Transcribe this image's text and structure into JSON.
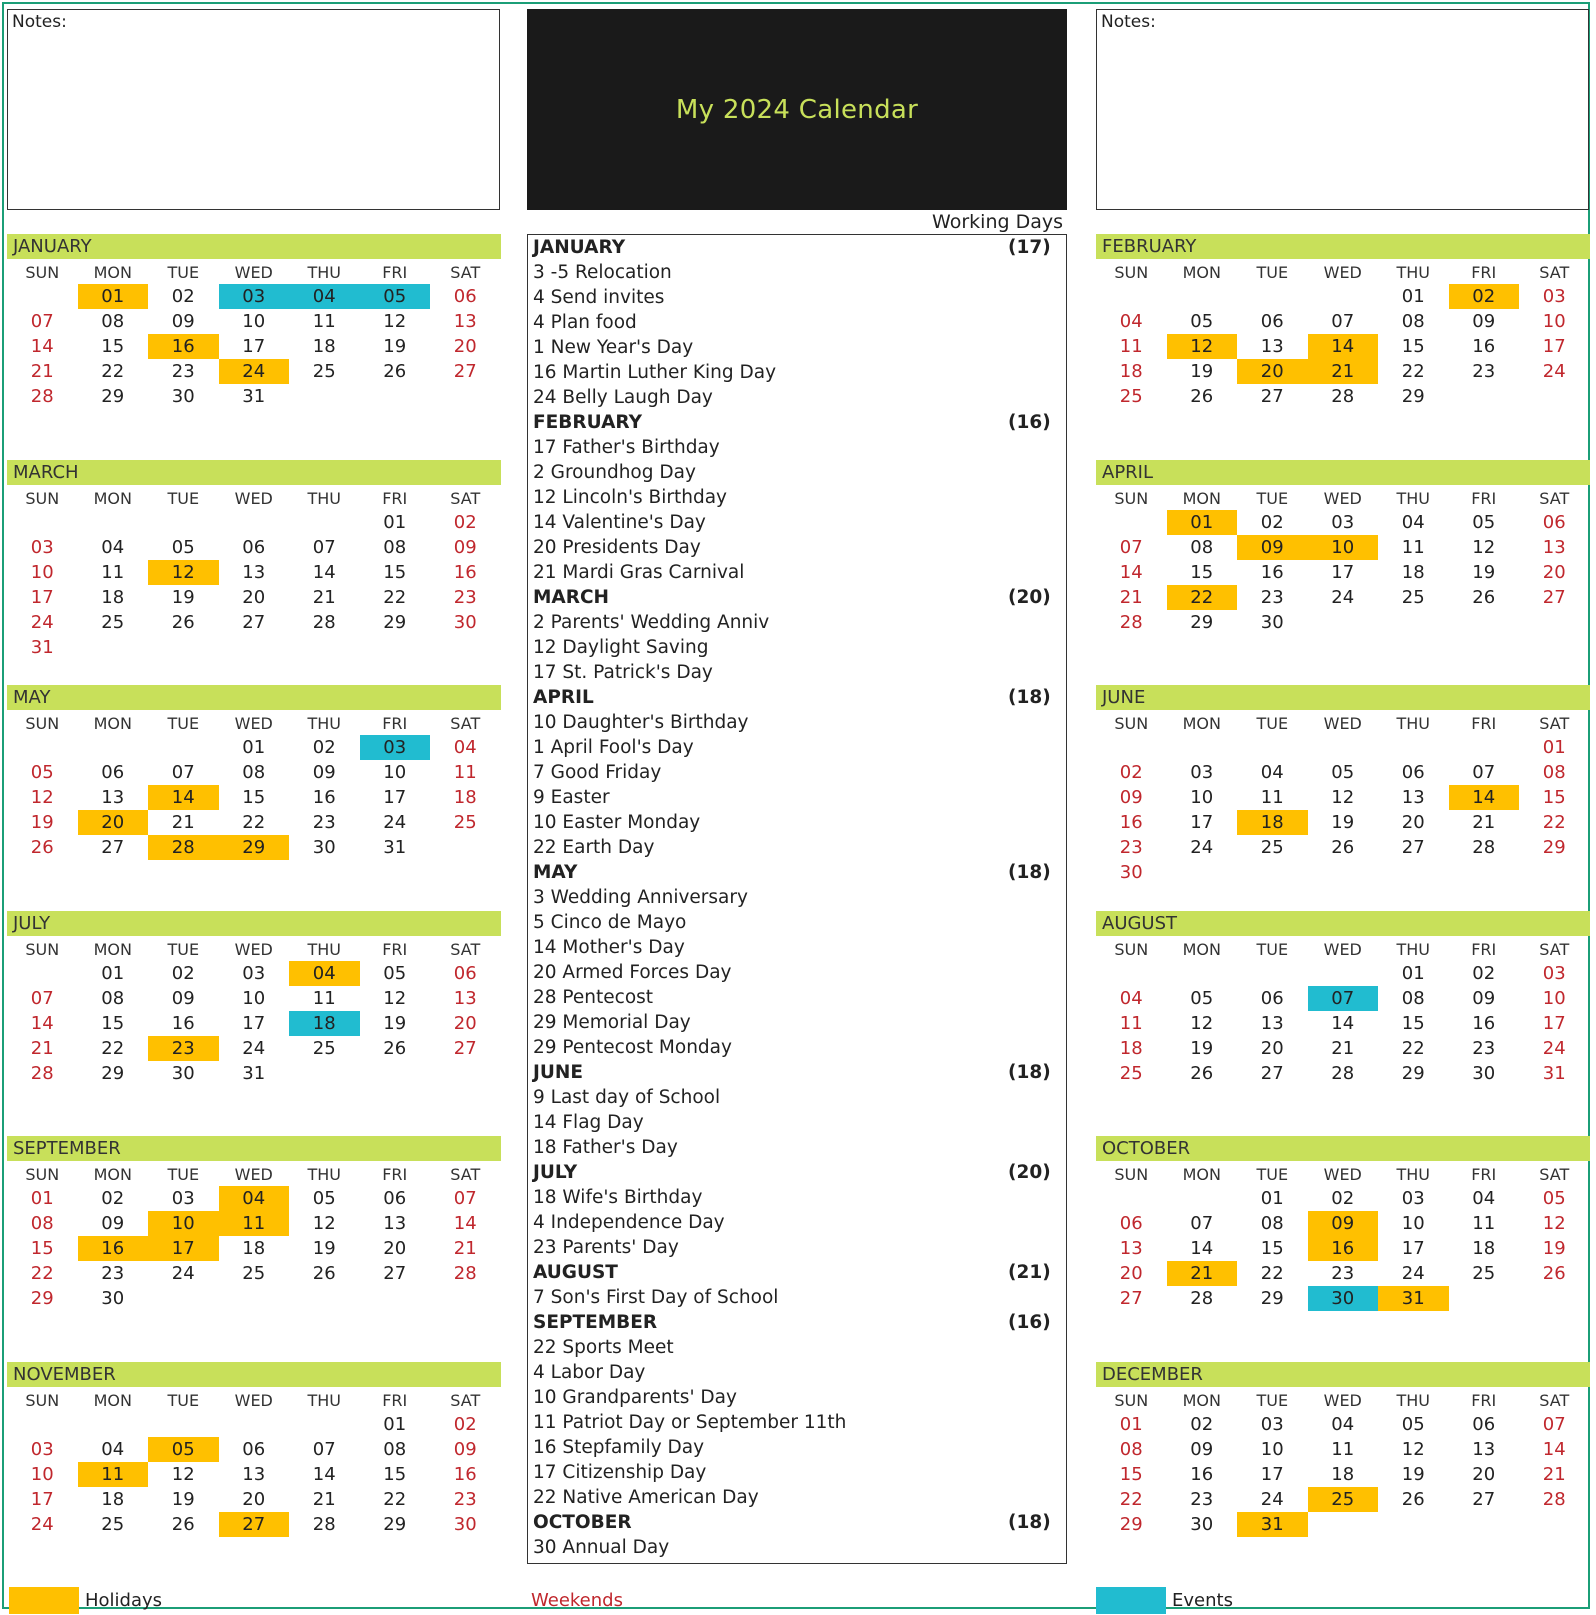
{
  "title": "My 2024 Calendar",
  "notes_label": "Notes:",
  "working_days_label": "Working Days",
  "weekdays": [
    "SUN",
    "MON",
    "TUE",
    "WED",
    "THU",
    "FRI",
    "SAT"
  ],
  "colors": {
    "accent": "#c8e05a",
    "holiday": "#ffc000",
    "event": "#21bcd0",
    "weekend": "#c0272d"
  },
  "months": [
    {
      "name": "JANUARY",
      "start": 1,
      "days": 31,
      "holidays": [
        1,
        16,
        24
      ],
      "events": [
        3,
        4,
        5
      ]
    },
    {
      "name": "FEBRUARY",
      "start": 4,
      "days": 29,
      "holidays": [
        2,
        12,
        14,
        20,
        21
      ],
      "events": []
    },
    {
      "name": "MARCH",
      "start": 5,
      "days": 31,
      "holidays": [
        12
      ],
      "events": []
    },
    {
      "name": "APRIL",
      "start": 1,
      "days": 30,
      "holidays": [
        1,
        9,
        10,
        22
      ],
      "events": []
    },
    {
      "name": "MAY",
      "start": 3,
      "days": 31,
      "holidays": [
        14,
        20,
        28,
        29
      ],
      "events": [
        3
      ]
    },
    {
      "name": "JUNE",
      "start": 6,
      "days": 30,
      "holidays": [
        14,
        18
      ],
      "events": []
    },
    {
      "name": "JULY",
      "start": 1,
      "days": 31,
      "holidays": [
        4,
        23
      ],
      "events": [
        18
      ]
    },
    {
      "name": "AUGUST",
      "start": 4,
      "days": 31,
      "holidays": [],
      "events": [
        7
      ]
    },
    {
      "name": "SEPTEMBER",
      "start": 0,
      "days": 30,
      "holidays": [
        4,
        10,
        11,
        16,
        17
      ],
      "events": []
    },
    {
      "name": "OCTOBER",
      "start": 2,
      "days": 31,
      "holidays": [
        9,
        16,
        21,
        31
      ],
      "events": [
        30
      ]
    },
    {
      "name": "NOVEMBER",
      "start": 5,
      "days": 30,
      "holidays": [
        5,
        11,
        27
      ],
      "events": []
    },
    {
      "name": "DECEMBER",
      "start": 0,
      "days": 31,
      "holidays": [
        25,
        31
      ],
      "events": []
    }
  ],
  "summary": [
    {
      "month": "JANUARY",
      "count": "(17)",
      "items": [
        "3 -5 Relocation",
        "4 Send invites",
        "4 Plan food",
        "1 New Year's Day",
        "16 Martin Luther King Day",
        "24 Belly Laugh Day"
      ]
    },
    {
      "month": "FEBRUARY",
      "count": "(16)",
      "items": [
        "17 Father's Birthday",
        "2 Groundhog Day",
        "12 Lincoln's Birthday",
        "14 Valentine's Day",
        "20 Presidents Day",
        "21 Mardi Gras Carnival"
      ]
    },
    {
      "month": "MARCH",
      "count": "(20)",
      "items": [
        "2 Parents' Wedding Anniv",
        "12 Daylight Saving",
        "17 St. Patrick's Day"
      ]
    },
    {
      "month": "APRIL",
      "count": "(18)",
      "items": [
        "10 Daughter's Birthday",
        "1 April Fool's Day",
        "7 Good Friday",
        "9 Easter",
        "10 Easter Monday",
        "22 Earth Day"
      ]
    },
    {
      "month": "MAY",
      "count": "(18)",
      "items": [
        "3 Wedding Anniversary",
        "5 Cinco de Mayo",
        "14 Mother's Day",
        "20 Armed Forces Day",
        "28 Pentecost",
        "29 Memorial Day",
        "29 Pentecost Monday"
      ]
    },
    {
      "month": "JUNE",
      "count": "(18)",
      "items": [
        "9 Last day of School",
        "14 Flag Day",
        "18 Father's Day"
      ]
    },
    {
      "month": "JULY",
      "count": "(20)",
      "items": [
        "18 Wife's Birthday",
        "4 Independence Day",
        "23 Parents' Day"
      ]
    },
    {
      "month": "AUGUST",
      "count": "(21)",
      "items": [
        "7 Son's First Day of School"
      ]
    },
    {
      "month": "SEPTEMBER",
      "count": "(16)",
      "items": [
        "22 Sports Meet",
        "4 Labor Day",
        "10 Grandparents' Day",
        "11 Patriot Day or September 11th",
        "16 Stepfamily Day",
        "17 Citizenship Day",
        "22 Native American Day"
      ]
    },
    {
      "month": "OCTOBER",
      "count": "(18)",
      "items": [
        "30 Annual Day"
      ]
    }
  ],
  "legend": {
    "holidays": "Holidays",
    "weekends": "Weekends",
    "events": "Events"
  }
}
